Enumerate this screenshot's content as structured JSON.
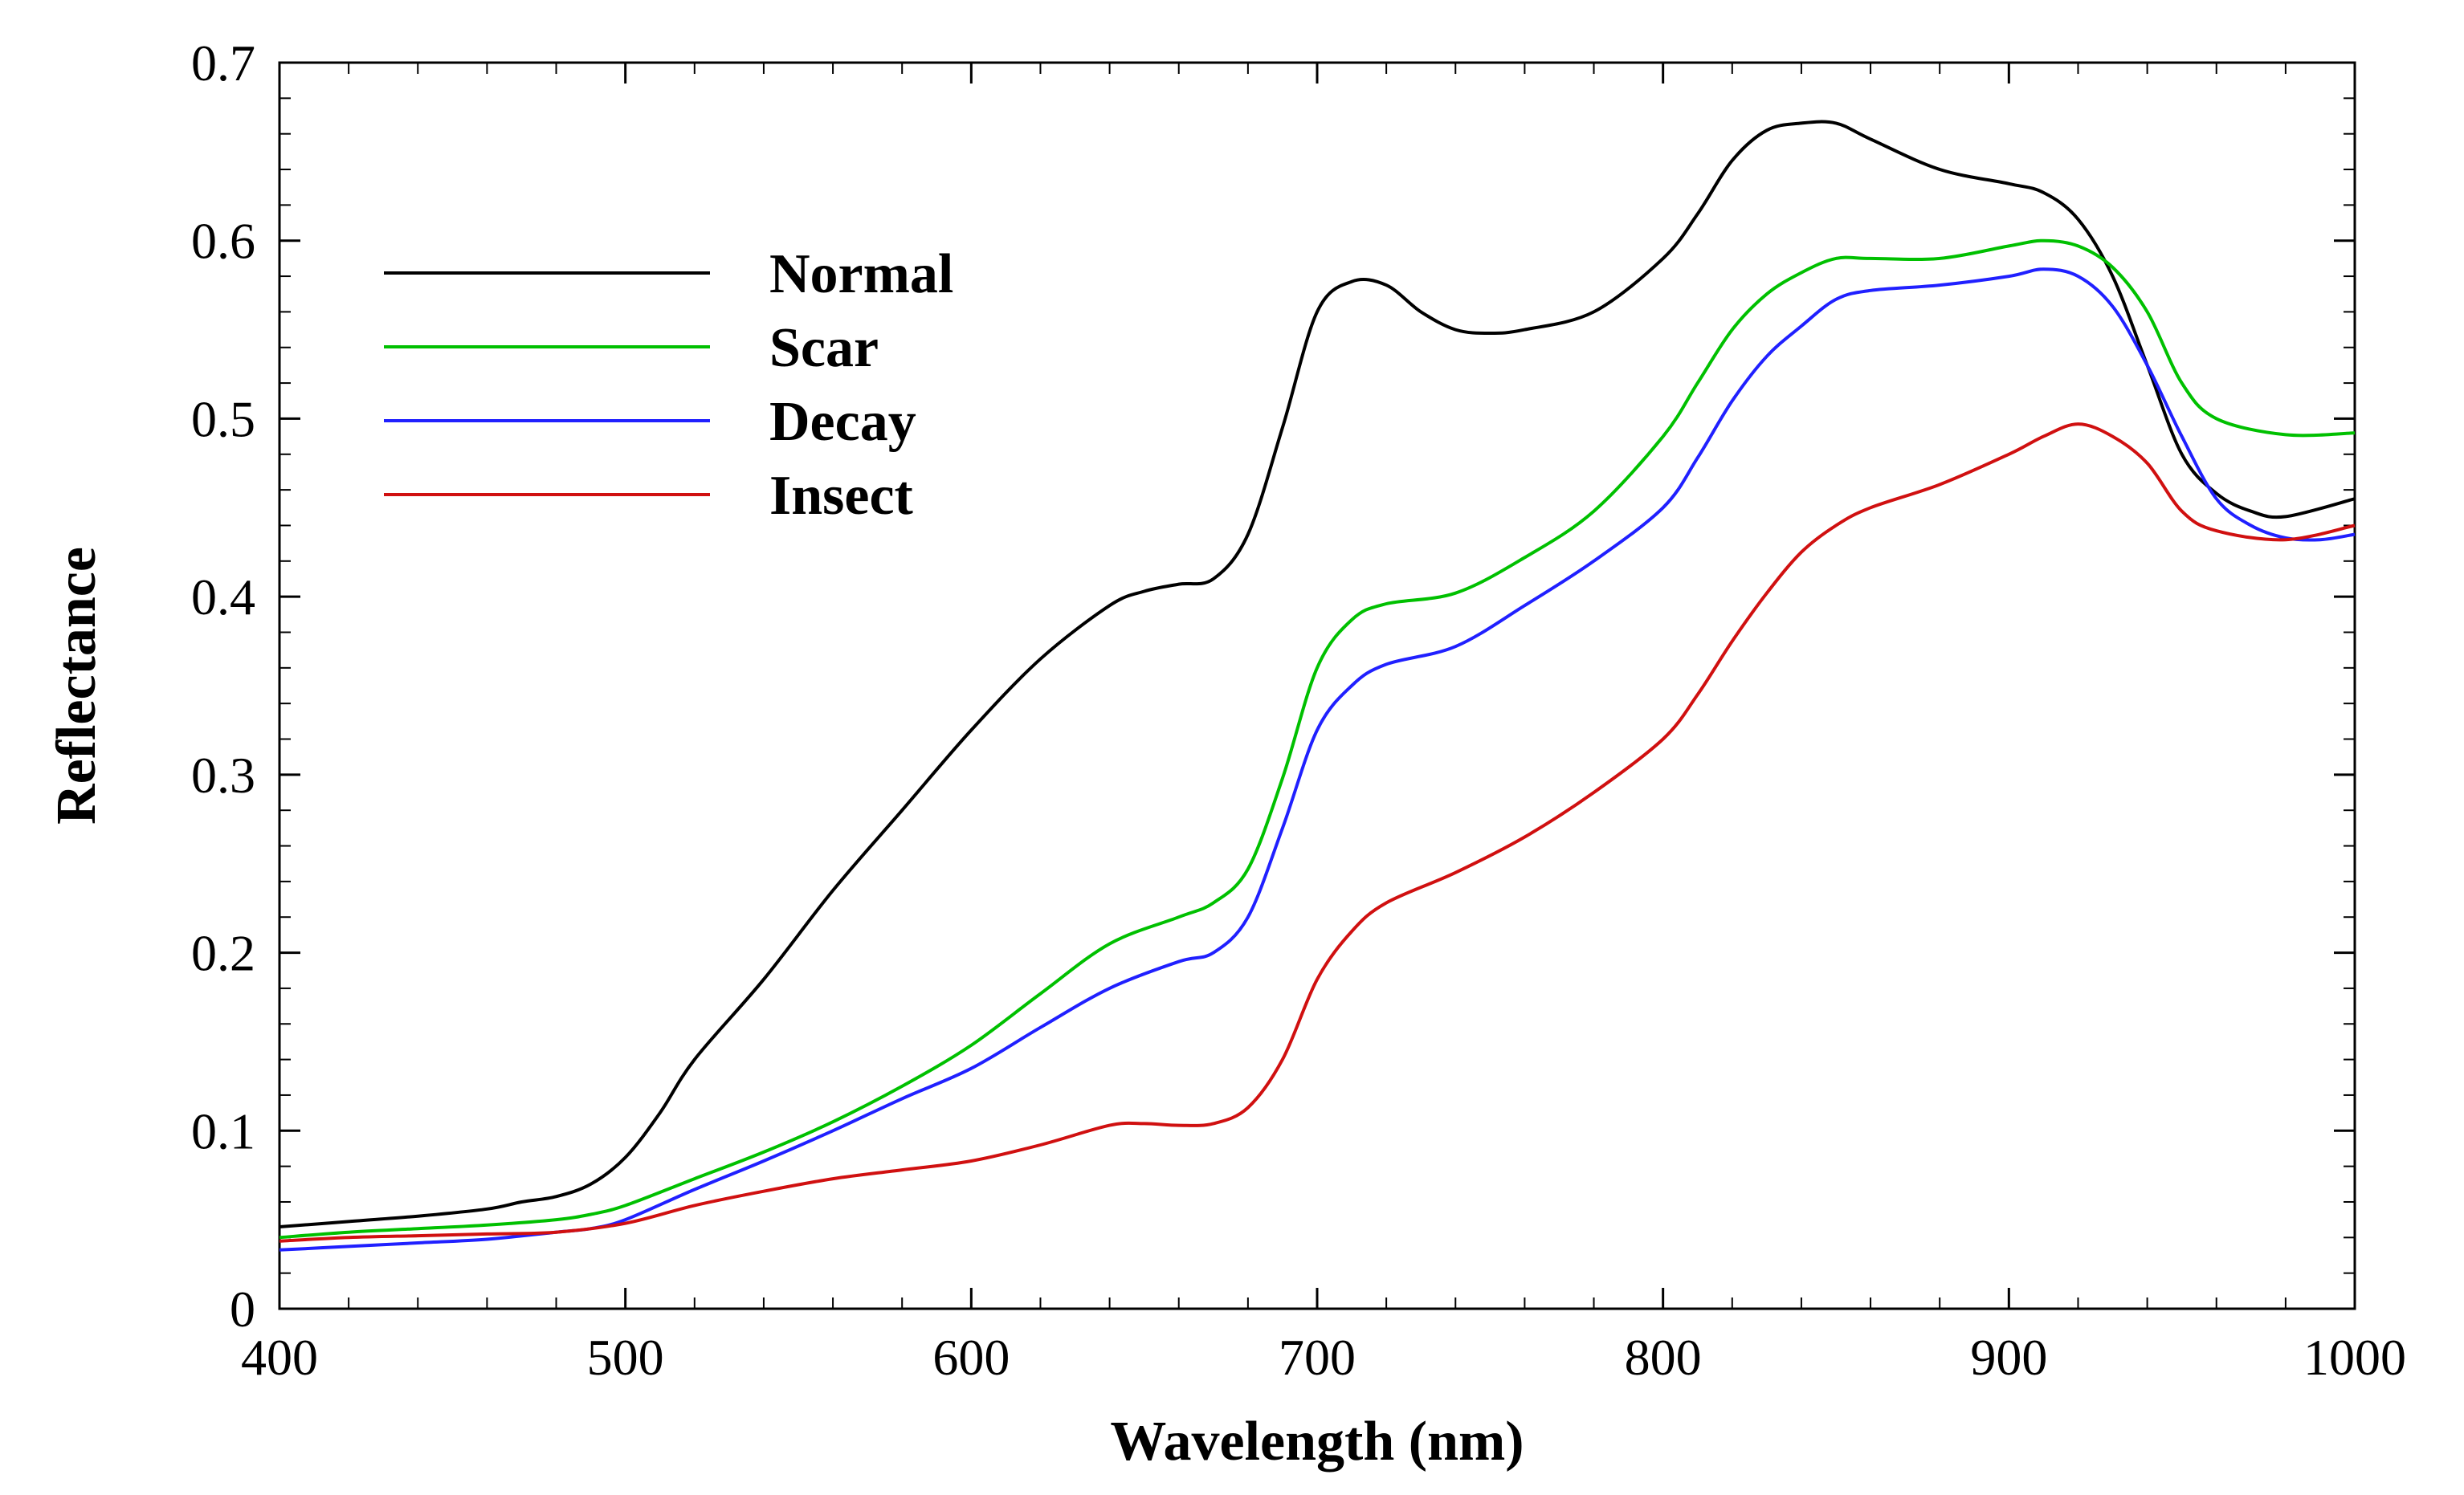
{
  "chart_data": {
    "type": "line",
    "title": "",
    "xlabel": "Wavelength (nm)",
    "ylabel": "Reflectance",
    "xlim": [
      400,
      1000
    ],
    "ylim": [
      0,
      0.7
    ],
    "xticks": [
      400,
      500,
      600,
      700,
      800,
      900,
      1000
    ],
    "xtick_labels": [
      "400",
      "500",
      "600",
      "700",
      "800",
      "900",
      "1000"
    ],
    "yticks": [
      0,
      0.1,
      0.2,
      0.3,
      0.4,
      0.5,
      0.6,
      0.7
    ],
    "ytick_labels": [
      "0",
      "0.1",
      "0.2",
      "0.3",
      "0.4",
      "0.5",
      "0.6",
      "0.7"
    ],
    "grid": false,
    "legend_position": "top-left",
    "series": [
      {
        "name": "Normal",
        "color": "#000000",
        "points": [
          [
            400,
            0.046
          ],
          [
            420,
            0.049
          ],
          [
            440,
            0.052
          ],
          [
            460,
            0.056
          ],
          [
            470,
            0.06
          ],
          [
            480,
            0.063
          ],
          [
            490,
            0.07
          ],
          [
            500,
            0.085
          ],
          [
            510,
            0.11
          ],
          [
            520,
            0.14
          ],
          [
            540,
            0.185
          ],
          [
            560,
            0.235
          ],
          [
            580,
            0.28
          ],
          [
            600,
            0.325
          ],
          [
            620,
            0.365
          ],
          [
            640,
            0.395
          ],
          [
            650,
            0.403
          ],
          [
            660,
            0.407
          ],
          [
            670,
            0.41
          ],
          [
            680,
            0.435
          ],
          [
            690,
            0.495
          ],
          [
            700,
            0.56
          ],
          [
            710,
            0.577
          ],
          [
            720,
            0.575
          ],
          [
            730,
            0.56
          ],
          [
            740,
            0.55
          ],
          [
            750,
            0.548
          ],
          [
            760,
            0.55
          ],
          [
            780,
            0.56
          ],
          [
            800,
            0.59
          ],
          [
            810,
            0.615
          ],
          [
            820,
            0.645
          ],
          [
            830,
            0.662
          ],
          [
            840,
            0.666
          ],
          [
            850,
            0.666
          ],
          [
            860,
            0.657
          ],
          [
            880,
            0.64
          ],
          [
            900,
            0.632
          ],
          [
            910,
            0.627
          ],
          [
            920,
            0.612
          ],
          [
            930,
            0.58
          ],
          [
            940,
            0.53
          ],
          [
            950,
            0.48
          ],
          [
            960,
            0.458
          ],
          [
            970,
            0.448
          ],
          [
            980,
            0.445
          ],
          [
            1000,
            0.455
          ]
        ]
      },
      {
        "name": "Scar",
        "color": "#00c000",
        "points": [
          [
            400,
            0.04
          ],
          [
            420,
            0.043
          ],
          [
            440,
            0.045
          ],
          [
            460,
            0.047
          ],
          [
            480,
            0.05
          ],
          [
            490,
            0.053
          ],
          [
            500,
            0.058
          ],
          [
            520,
            0.073
          ],
          [
            540,
            0.088
          ],
          [
            560,
            0.105
          ],
          [
            580,
            0.125
          ],
          [
            600,
            0.148
          ],
          [
            620,
            0.177
          ],
          [
            640,
            0.205
          ],
          [
            660,
            0.22
          ],
          [
            670,
            0.228
          ],
          [
            680,
            0.247
          ],
          [
            690,
            0.298
          ],
          [
            700,
            0.36
          ],
          [
            710,
            0.387
          ],
          [
            720,
            0.396
          ],
          [
            740,
            0.402
          ],
          [
            760,
            0.422
          ],
          [
            780,
            0.448
          ],
          [
            800,
            0.49
          ],
          [
            810,
            0.52
          ],
          [
            820,
            0.55
          ],
          [
            830,
            0.57
          ],
          [
            840,
            0.582
          ],
          [
            850,
            0.59
          ],
          [
            860,
            0.59
          ],
          [
            880,
            0.59
          ],
          [
            900,
            0.597
          ],
          [
            910,
            0.6
          ],
          [
            920,
            0.597
          ],
          [
            930,
            0.585
          ],
          [
            940,
            0.56
          ],
          [
            950,
            0.52
          ],
          [
            960,
            0.5
          ],
          [
            980,
            0.491
          ],
          [
            1000,
            0.492
          ]
        ]
      },
      {
        "name": "Decay",
        "color": "#2020ff",
        "points": [
          [
            400,
            0.033
          ],
          [
            420,
            0.035
          ],
          [
            440,
            0.037
          ],
          [
            460,
            0.039
          ],
          [
            480,
            0.043
          ],
          [
            490,
            0.045
          ],
          [
            500,
            0.05
          ],
          [
            520,
            0.067
          ],
          [
            540,
            0.083
          ],
          [
            560,
            0.1
          ],
          [
            580,
            0.118
          ],
          [
            600,
            0.135
          ],
          [
            620,
            0.158
          ],
          [
            640,
            0.18
          ],
          [
            660,
            0.195
          ],
          [
            670,
            0.2
          ],
          [
            680,
            0.22
          ],
          [
            690,
            0.27
          ],
          [
            700,
            0.325
          ],
          [
            710,
            0.35
          ],
          [
            720,
            0.362
          ],
          [
            740,
            0.372
          ],
          [
            760,
            0.395
          ],
          [
            780,
            0.42
          ],
          [
            800,
            0.45
          ],
          [
            810,
            0.478
          ],
          [
            820,
            0.51
          ],
          [
            830,
            0.535
          ],
          [
            840,
            0.552
          ],
          [
            850,
            0.567
          ],
          [
            860,
            0.572
          ],
          [
            880,
            0.575
          ],
          [
            900,
            0.58
          ],
          [
            910,
            0.584
          ],
          [
            920,
            0.58
          ],
          [
            930,
            0.563
          ],
          [
            940,
            0.53
          ],
          [
            950,
            0.49
          ],
          [
            960,
            0.455
          ],
          [
            970,
            0.44
          ],
          [
            980,
            0.433
          ],
          [
            990,
            0.432
          ],
          [
            1000,
            0.435
          ]
        ]
      },
      {
        "name": "Insect",
        "color": "#d01010",
        "points": [
          [
            400,
            0.038
          ],
          [
            420,
            0.04
          ],
          [
            440,
            0.041
          ],
          [
            460,
            0.042
          ],
          [
            480,
            0.043
          ],
          [
            500,
            0.048
          ],
          [
            520,
            0.058
          ],
          [
            540,
            0.066
          ],
          [
            560,
            0.073
          ],
          [
            580,
            0.078
          ],
          [
            600,
            0.083
          ],
          [
            620,
            0.092
          ],
          [
            640,
            0.103
          ],
          [
            650,
            0.104
          ],
          [
            660,
            0.103
          ],
          [
            670,
            0.104
          ],
          [
            680,
            0.113
          ],
          [
            690,
            0.14
          ],
          [
            700,
            0.185
          ],
          [
            710,
            0.212
          ],
          [
            720,
            0.228
          ],
          [
            740,
            0.245
          ],
          [
            760,
            0.265
          ],
          [
            780,
            0.29
          ],
          [
            800,
            0.32
          ],
          [
            810,
            0.345
          ],
          [
            820,
            0.375
          ],
          [
            830,
            0.402
          ],
          [
            840,
            0.425
          ],
          [
            850,
            0.44
          ],
          [
            860,
            0.45
          ],
          [
            880,
            0.463
          ],
          [
            900,
            0.48
          ],
          [
            910,
            0.49
          ],
          [
            920,
            0.497
          ],
          [
            930,
            0.49
          ],
          [
            940,
            0.475
          ],
          [
            950,
            0.448
          ],
          [
            960,
            0.437
          ],
          [
            980,
            0.432
          ],
          [
            1000,
            0.44
          ]
        ]
      }
    ]
  }
}
